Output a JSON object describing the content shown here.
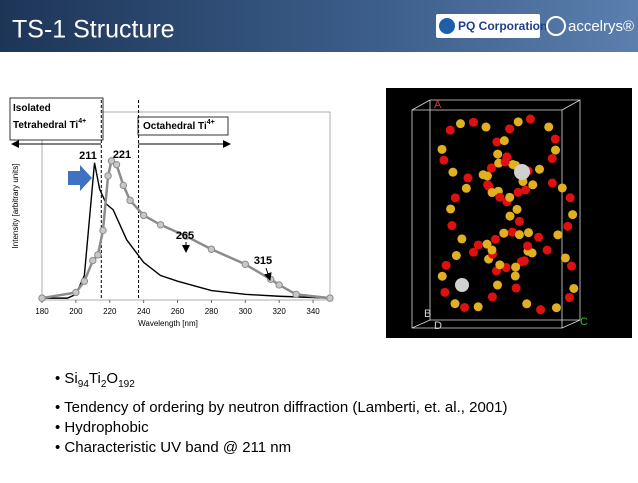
{
  "header": {
    "title": "TS-1 Structure",
    "logo_left": "PQ Corporation",
    "logo_right": "accelrys®"
  },
  "chart_data": {
    "type": "line",
    "ylabel": "Intensity [arbitrary units]",
    "xlabel": "Wavelength [nm]",
    "xlim": [
      180,
      350
    ],
    "ylim": [
      0,
      1
    ],
    "xticks": [
      180,
      200,
      220,
      240,
      260,
      280,
      300,
      320,
      340
    ],
    "vlines": [
      215,
      237
    ],
    "annotations": [
      "211",
      "221",
      "265",
      "315"
    ],
    "regions": [
      {
        "text": "Isolated",
        "text2": "Tetrahedral Ti",
        "sup": "4+"
      },
      {
        "text": "Octahedral Ti",
        "sup": "4+"
      }
    ],
    "series": [
      {
        "color": "#000000",
        "x": [
          180,
          195,
          200,
          205,
          208,
          211,
          214,
          218,
          222,
          226,
          230,
          240,
          250,
          260,
          280,
          300,
          320,
          350
        ],
        "values": [
          0.01,
          0.01,
          0.03,
          0.13,
          0.43,
          0.73,
          0.59,
          0.51,
          0.48,
          0.4,
          0.32,
          0.2,
          0.13,
          0.1,
          0.05,
          0.03,
          0.02,
          0.01
        ]
      },
      {
        "color": "#8c8c8c",
        "x": [
          180,
          200,
          205,
          210,
          213,
          216,
          219,
          221,
          224,
          228,
          232,
          240,
          250,
          265,
          280,
          300,
          315,
          320,
          330,
          350
        ],
        "values": [
          0.01,
          0.04,
          0.1,
          0.21,
          0.24,
          0.37,
          0.66,
          0.74,
          0.72,
          0.61,
          0.53,
          0.45,
          0.4,
          0.34,
          0.27,
          0.19,
          0.11,
          0.08,
          0.03,
          0.01
        ]
      }
    ]
  },
  "image_labels": [
    "A",
    "B",
    "D",
    "C"
  ],
  "bullets": {
    "formula": [
      "Si",
      "94",
      "Ti",
      "2",
      "O",
      "192"
    ],
    "items": [
      "Tendency of ordering by neutron diffraction (Lamberti, et. al., 2001)",
      "Hydrophobic",
      "Characteristic UV band @ 211 nm"
    ]
  }
}
